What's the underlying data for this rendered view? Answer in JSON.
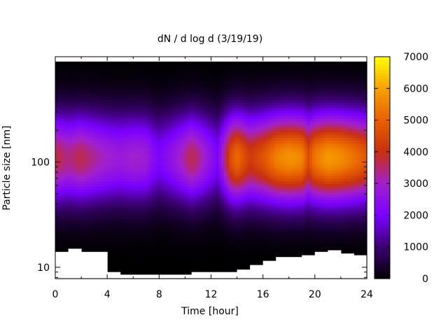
{
  "chart_data": {
    "type": "heatmap",
    "title": "dN / d log d (3/19/19)",
    "xlabel": "Time [hour]",
    "ylabel": "Particle size [nm]",
    "x_range": [
      0,
      24
    ],
    "x_ticks": [
      0,
      4,
      8,
      12,
      16,
      20,
      24
    ],
    "y_scale": "log",
    "y_range": [
      7.8,
      900
    ],
    "y_ticks": [
      10,
      100
    ],
    "grid": false,
    "colorbar": {
      "range": [
        0,
        7000
      ],
      "ticks": [
        0,
        1000,
        2000,
        3000,
        4000,
        5000,
        6000,
        7000
      ],
      "colormap": [
        "#000000",
        "#3a0070",
        "#7a00ff",
        "#a020d0",
        "#c83010",
        "#e86000",
        "#f8a000",
        "#ffff00"
      ]
    },
    "mode_diameter_nm": 110,
    "time_samples_hour": [
      0,
      1,
      2,
      3,
      4,
      5,
      6,
      7,
      7.5,
      8,
      9,
      10,
      10.5,
      11,
      12,
      12.5,
      13,
      13.5,
      14,
      15,
      16,
      17,
      18,
      19,
      19.5,
      20,
      21,
      22,
      23,
      24
    ],
    "peak_concentration": [
      3800,
      3400,
      3700,
      3300,
      3000,
      2800,
      3000,
      2900,
      2400,
      2100,
      2600,
      3300,
      3700,
      3400,
      2500,
      2100,
      3200,
      4600,
      5200,
      4200,
      4700,
      5500,
      5800,
      5600,
      4600,
      5400,
      5900,
      5700,
      5300,
      4800
    ],
    "lower_size_limit_nm": [
      14,
      15,
      14,
      14,
      9,
      8.5,
      8.5,
      8.5,
      8.5,
      8.5,
      8.5,
      8.5,
      9,
      9,
      9,
      9,
      9,
      9,
      9.5,
      10.5,
      11.5,
      12.5,
      12.5,
      13,
      13,
      14,
      14.5,
      13.5,
      13,
      13
    ]
  }
}
